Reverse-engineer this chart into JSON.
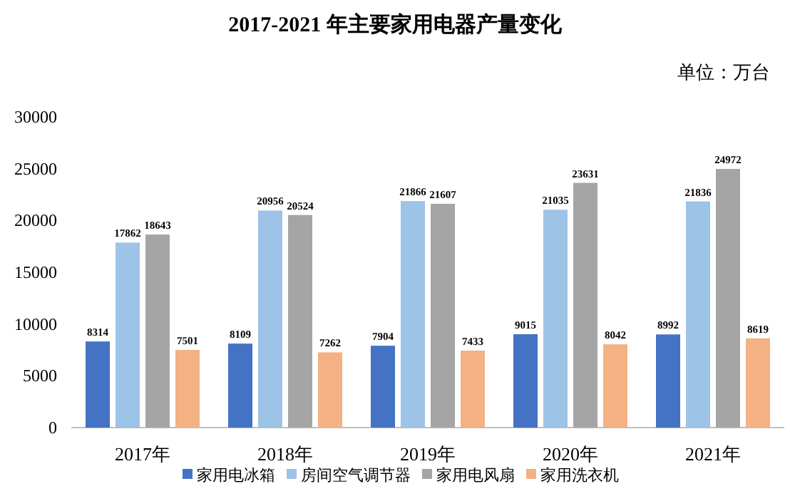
{
  "chart_data": {
    "type": "bar",
    "title": "2017-2021 年主要家用电器产量变化",
    "annotations": [
      "单位：万台"
    ],
    "categories": [
      "2017年",
      "2018年",
      "2019年",
      "2020年",
      "2021年"
    ],
    "series": [
      {
        "name": "家用电冰箱",
        "color": "#4472c4",
        "values": [
          8314,
          8109,
          7904,
          9015,
          8992
        ]
      },
      {
        "name": "房间空气调节器",
        "color": "#9dc3e6",
        "values": [
          17862,
          20956,
          21866,
          21035,
          21836
        ]
      },
      {
        "name": "家用电风扇",
        "color": "#a5a5a5",
        "values": [
          18643,
          20524,
          21607,
          23631,
          24972
        ]
      },
      {
        "name": "家用洗衣机",
        "color": "#f4b183",
        "values": [
          7501,
          7262,
          7433,
          8042,
          8619
        ]
      }
    ],
    "ylim": [
      0,
      30000
    ],
    "yticks": [
      0,
      5000,
      10000,
      15000,
      20000,
      25000,
      30000
    ],
    "data_labels": true,
    "grid": false,
    "legend": "bottom"
  }
}
